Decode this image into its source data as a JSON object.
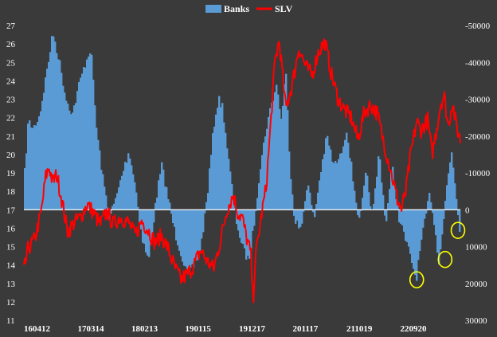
{
  "chart_data": {
    "type": "bar+line",
    "title": "",
    "legend": {
      "placement": "top-center",
      "items": [
        {
          "name": "Banks",
          "color": "#5b9bd5",
          "shape": "bar"
        },
        {
          "name": "SLV",
          "color": "#ff0000",
          "shape": "line"
        }
      ]
    },
    "colors": {
      "background": "#3a3a3a",
      "banks": "#5b9bd5",
      "slv": "#ff0000",
      "zero_line": "#ffffff",
      "highlight": "#ffff00"
    },
    "x_tick_labels": [
      "160412",
      "170314",
      "180213",
      "190115",
      "191217",
      "201117",
      "211019",
      "220920"
    ],
    "left_axis": {
      "ylim": [
        11,
        27
      ],
      "ticks": [
        11,
        12,
        13,
        14,
        15,
        16,
        17,
        18,
        19,
        20,
        21,
        22,
        23,
        24,
        25,
        26,
        27
      ],
      "series": "SLV"
    },
    "right_axis": {
      "ylim": [
        30000,
        -50000
      ],
      "inverted": true,
      "tick_labels": [
        "-50000",
        "-40000",
        "-30000",
        "-20000",
        "-10000",
        "0",
        "10000",
        "20000",
        "30000"
      ],
      "series": "Banks"
    },
    "banks_anchors": [
      [
        0,
        -10000
      ],
      [
        0.008,
        -24000
      ],
      [
        0.02,
        -22000
      ],
      [
        0.035,
        -26000
      ],
      [
        0.05,
        -37000
      ],
      [
        0.065,
        -48000
      ],
      [
        0.08,
        -40000
      ],
      [
        0.095,
        -30000
      ],
      [
        0.11,
        -26000
      ],
      [
        0.125,
        -34000
      ],
      [
        0.14,
        -40000
      ],
      [
        0.152,
        -44000
      ],
      [
        0.165,
        -22000
      ],
      [
        0.18,
        -8000
      ],
      [
        0.195,
        2000
      ],
      [
        0.21,
        -3000
      ],
      [
        0.225,
        -10000
      ],
      [
        0.24,
        -16000
      ],
      [
        0.255,
        -6000
      ],
      [
        0.27,
        8000
      ],
      [
        0.285,
        14000
      ],
      [
        0.295,
        4000
      ],
      [
        0.305,
        -5000
      ],
      [
        0.315,
        -12000
      ],
      [
        0.33,
        -3000
      ],
      [
        0.345,
        6000
      ],
      [
        0.36,
        12000
      ],
      [
        0.375,
        18000
      ],
      [
        0.39,
        15000
      ],
      [
        0.405,
        10000
      ],
      [
        0.42,
        -4000
      ],
      [
        0.435,
        -23000
      ],
      [
        0.445,
        -30000
      ],
      [
        0.455,
        -28000
      ],
      [
        0.47,
        -12000
      ],
      [
        0.485,
        2000
      ],
      [
        0.5,
        10000
      ],
      [
        0.515,
        14000
      ],
      [
        0.525,
        6000
      ],
      [
        0.54,
        -10000
      ],
      [
        0.555,
        -22000
      ],
      [
        0.57,
        -30000
      ],
      [
        0.58,
        -34000
      ],
      [
        0.59,
        -24000
      ],
      [
        0.6,
        -38000
      ],
      [
        0.61,
        -12000
      ],
      [
        0.62,
        2000
      ],
      [
        0.635,
        6000
      ],
      [
        0.65,
        -8000
      ],
      [
        0.665,
        3000
      ],
      [
        0.68,
        -10000
      ],
      [
        0.695,
        -20000
      ],
      [
        0.71,
        -12000
      ],
      [
        0.725,
        -14000
      ],
      [
        0.74,
        -22000
      ],
      [
        0.755,
        -8000
      ],
      [
        0.77,
        4000
      ],
      [
        0.785,
        -10000
      ],
      [
        0.8,
        2000
      ],
      [
        0.815,
        -16000
      ],
      [
        0.83,
        4000
      ],
      [
        0.845,
        -12000
      ],
      [
        0.86,
        2000
      ],
      [
        0.875,
        8000
      ],
      [
        0.89,
        14000
      ],
      [
        0.9,
        19000
      ],
      [
        0.91,
        10000
      ],
      [
        0.922,
        2000
      ],
      [
        0.932,
        -5000
      ],
      [
        0.942,
        4000
      ],
      [
        0.952,
        14000
      ],
      [
        0.962,
        4000
      ],
      [
        0.972,
        -8000
      ],
      [
        0.982,
        -16000
      ],
      [
        0.992,
        -4000
      ],
      [
        1.0,
        5000
      ]
    ],
    "slv_anchors": [
      [
        0,
        13.7
      ],
      [
        0.01,
        14.9
      ],
      [
        0.025,
        15.4
      ],
      [
        0.04,
        16.9
      ],
      [
        0.05,
        18.8
      ],
      [
        0.058,
        19.3
      ],
      [
        0.066,
        18.5
      ],
      [
        0.075,
        18.9
      ],
      [
        0.085,
        17.8
      ],
      [
        0.1,
        15.8
      ],
      [
        0.115,
        16.3
      ],
      [
        0.13,
        16.6
      ],
      [
        0.145,
        17.3
      ],
      [
        0.16,
        16.8
      ],
      [
        0.175,
        16.2
      ],
      [
        0.19,
        16.9
      ],
      [
        0.205,
        16.2
      ],
      [
        0.22,
        16.6
      ],
      [
        0.24,
        16.3
      ],
      [
        0.255,
        15.6
      ],
      [
        0.27,
        16.4
      ],
      [
        0.285,
        15.9
      ],
      [
        0.3,
        15.2
      ],
      [
        0.315,
        15.6
      ],
      [
        0.33,
        14.9
      ],
      [
        0.345,
        13.9
      ],
      [
        0.36,
        13.2
      ],
      [
        0.375,
        13.5
      ],
      [
        0.39,
        14.0
      ],
      [
        0.405,
        14.8
      ],
      [
        0.42,
        14.2
      ],
      [
        0.435,
        13.8
      ],
      [
        0.45,
        15.3
      ],
      [
        0.465,
        17.0
      ],
      [
        0.48,
        17.8
      ],
      [
        0.49,
        16.8
      ],
      [
        0.5,
        16.6
      ],
      [
        0.51,
        15.5
      ],
      [
        0.52,
        14.6
      ],
      [
        0.525,
        11.9
      ],
      [
        0.53,
        14.3
      ],
      [
        0.545,
        16.8
      ],
      [
        0.555,
        18.2
      ],
      [
        0.565,
        21.5
      ],
      [
        0.575,
        25.0
      ],
      [
        0.585,
        26.2
      ],
      [
        0.6,
        22.5
      ],
      [
        0.615,
        23.8
      ],
      [
        0.63,
        25.8
      ],
      [
        0.645,
        24.8
      ],
      [
        0.66,
        24.3
      ],
      [
        0.675,
        25.6
      ],
      [
        0.69,
        26.1
      ],
      [
        0.705,
        24.3
      ],
      [
        0.72,
        23.0
      ],
      [
        0.735,
        22.4
      ],
      [
        0.75,
        22.0
      ],
      [
        0.765,
        20.8
      ],
      [
        0.78,
        22.3
      ],
      [
        0.795,
        22.7
      ],
      [
        0.81,
        22.2
      ],
      [
        0.825,
        20.6
      ],
      [
        0.84,
        19.2
      ],
      [
        0.855,
        17.6
      ],
      [
        0.865,
        17.0
      ],
      [
        0.875,
        18.0
      ],
      [
        0.885,
        19.8
      ],
      [
        0.9,
        21.8
      ],
      [
        0.91,
        21.3
      ],
      [
        0.925,
        21.9
      ],
      [
        0.935,
        20.0
      ],
      [
        0.945,
        21.3
      ],
      [
        0.955,
        22.8
      ],
      [
        0.963,
        23.2
      ],
      [
        0.972,
        21.5
      ],
      [
        0.982,
        22.9
      ],
      [
        0.99,
        21.6
      ],
      [
        1.0,
        20.8
      ]
    ],
    "highlight_markers": [
      {
        "label": "",
        "x_frac": 0.9,
        "banks_value": 19000
      },
      {
        "label": "",
        "x_frac": 0.965,
        "banks_value": 13500
      },
      {
        "label": "",
        "x_frac": 1.0,
        "banks_value": 5600
      }
    ]
  }
}
